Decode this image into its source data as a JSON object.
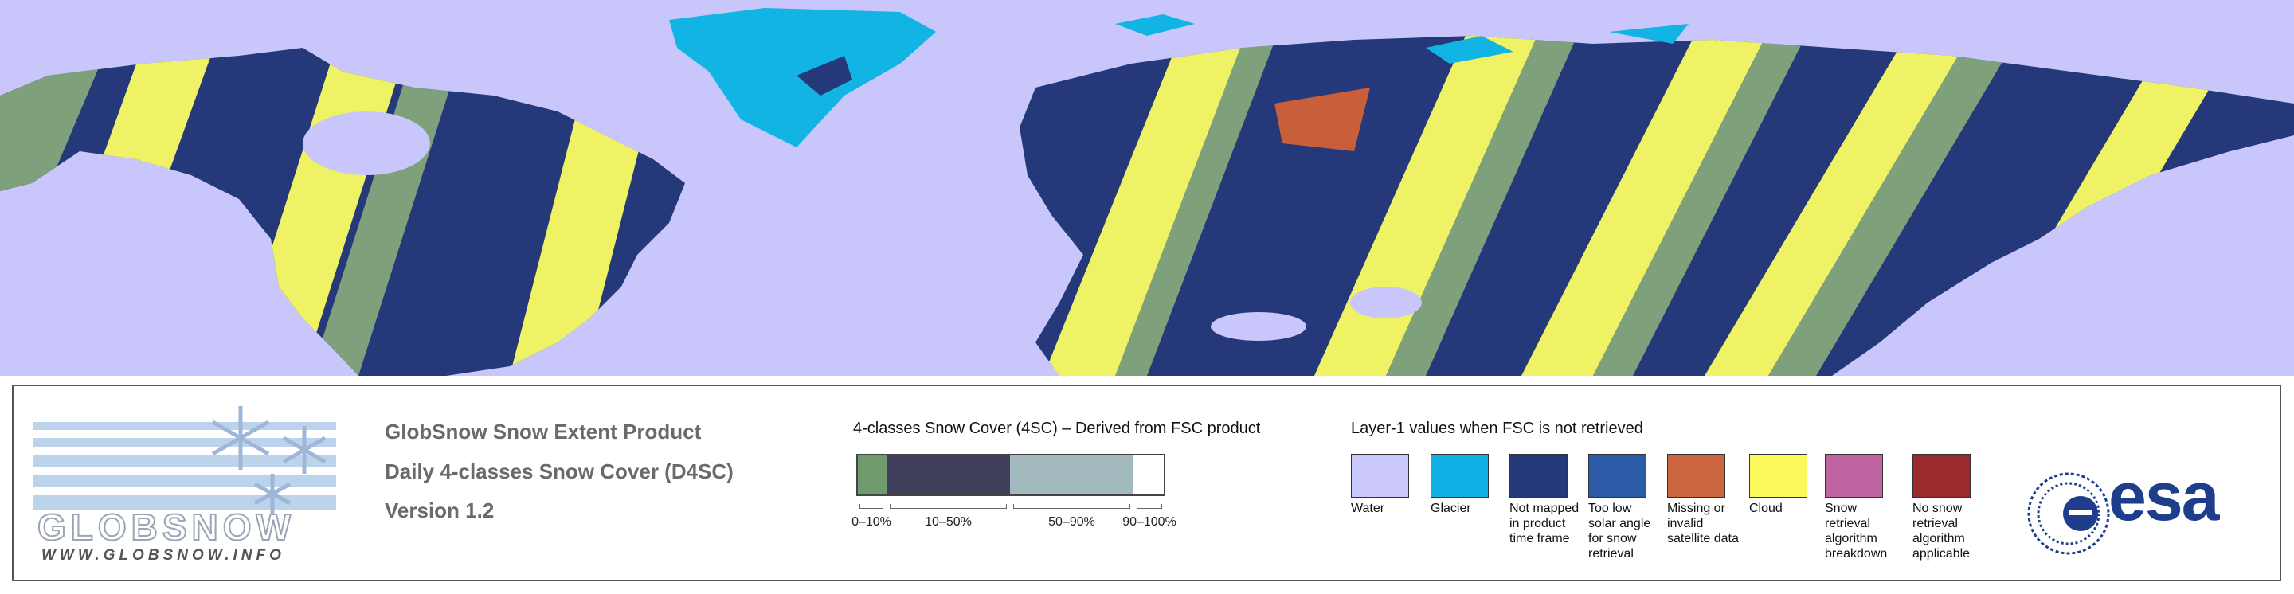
{
  "header": {
    "title": "GlobSnow Snow Extent Product",
    "subtitle": "Daily 4-classes Snow Cover (D4SC)",
    "version": "Version 1.2"
  },
  "logo": {
    "name": "GLOBSNOW",
    "url": "WWW.GLOBSNOW.INFO",
    "agency": "esa"
  },
  "fsc_legend": {
    "title": "4-classes Snow Cover (4SC) – Derived from FSC product",
    "classes": [
      {
        "label": "0–10%",
        "color": "#6e9a6c"
      },
      {
        "label": "10–50%",
        "color": "#3f3f5c"
      },
      {
        "label": "50–90%",
        "color": "#a2b9bd"
      },
      {
        "label": "90–100%",
        "color": "#ffffff"
      }
    ]
  },
  "layer1_legend": {
    "title": "Layer-1 values when FSC is not retrieved",
    "items": [
      {
        "label": "Water",
        "color": "#cbc8fc"
      },
      {
        "label": "Glacier",
        "color": "#10b2e6"
      },
      {
        "label": "Not mapped in product time frame",
        "color": "#24397a"
      },
      {
        "label": "Too low solar angle for snow retrieval",
        "color": "#2b5aa8"
      },
      {
        "label": "Missing or invalid satellite data",
        "color": "#cc6440"
      },
      {
        "label": "Cloud",
        "color": "#fbf95c"
      },
      {
        "label": "Snow retrieval algorithm breakdown",
        "color": "#bf64a0"
      },
      {
        "label": "No snow retrieval algorithm applicable",
        "color": "#9a2a2e"
      }
    ]
  }
}
